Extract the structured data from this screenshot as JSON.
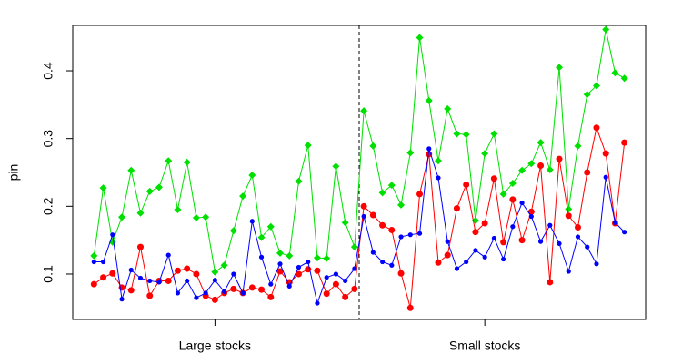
{
  "chart_data": {
    "type": "line",
    "ylabel": "pin",
    "xlim": [
      -1.28,
      60.28
    ],
    "ylim": [
      0.033,
      0.467
    ],
    "yticks": [
      0.1,
      0.2,
      0.3,
      0.4
    ],
    "xticks": [
      {
        "value": 14,
        "label": "Large stocks"
      },
      {
        "value": 43,
        "label": "Small stocks"
      }
    ],
    "divider": 29.5,
    "x": [
      1,
      2,
      3,
      4,
      5,
      6,
      7,
      8,
      9,
      10,
      11,
      12,
      13,
      14,
      15,
      16,
      17,
      18,
      19,
      20,
      21,
      22,
      23,
      24,
      25,
      26,
      27,
      28,
      29,
      30,
      31,
      32,
      33,
      34,
      35,
      36,
      37,
      38,
      39,
      40,
      41,
      42,
      43,
      44,
      45,
      46,
      47,
      48,
      49,
      50,
      51,
      52,
      53,
      54,
      55,
      56,
      57,
      58
    ],
    "series": [
      {
        "color": "#00e000",
        "marker": "diamond",
        "values": [
          0.127,
          0.227,
          0.147,
          0.184,
          0.253,
          0.19,
          0.222,
          0.228,
          0.267,
          0.195,
          0.265,
          0.183,
          0.184,
          0.103,
          0.113,
          0.164,
          0.215,
          0.246,
          0.154,
          0.17,
          0.131,
          0.127,
          0.237,
          0.29,
          0.124,
          0.123,
          0.259,
          0.176,
          0.14,
          0.341,
          0.289,
          0.22,
          0.231,
          0.202,
          0.279,
          0.449,
          0.356,
          0.267,
          0.344,
          0.307,
          0.306,
          0.179,
          0.278,
          0.307,
          0.218,
          0.234,
          0.253,
          0.263,
          0.294,
          0.254,
          0.405,
          0.196,
          0.289,
          0.365,
          0.378,
          0.461,
          0.397,
          0.389
        ]
      },
      {
        "color": "#ff0000",
        "marker": "circle",
        "values": [
          0.085,
          0.095,
          0.101,
          0.08,
          0.076,
          0.14,
          0.068,
          0.09,
          0.09,
          0.105,
          0.108,
          0.1,
          0.068,
          0.062,
          0.072,
          0.078,
          0.072,
          0.08,
          0.077,
          0.066,
          0.104,
          0.088,
          0.1,
          0.107,
          0.105,
          0.071,
          0.085,
          0.066,
          0.078,
          0.2,
          0.187,
          0.172,
          0.165,
          0.101,
          0.05,
          0.218,
          0.277,
          0.117,
          0.128,
          0.197,
          0.232,
          0.162,
          0.175,
          0.241,
          0.147,
          0.21,
          0.15,
          0.192,
          0.26,
          0.088,
          0.27,
          0.186,
          0.169,
          0.25,
          0.316,
          0.278,
          0.175,
          0.294
        ]
      },
      {
        "color": "#0000ff",
        "marker": "dot",
        "values": [
          0.118,
          0.118,
          0.158,
          0.063,
          0.106,
          0.094,
          0.09,
          0.088,
          0.128,
          0.072,
          0.09,
          0.065,
          0.072,
          0.091,
          0.074,
          0.1,
          0.072,
          0.178,
          0.125,
          0.085,
          0.115,
          0.082,
          0.11,
          0.118,
          0.057,
          0.095,
          0.1,
          0.09,
          0.108,
          0.185,
          0.132,
          0.118,
          0.113,
          0.155,
          0.158,
          0.16,
          0.285,
          0.242,
          0.148,
          0.108,
          0.118,
          0.135,
          0.125,
          0.153,
          0.122,
          0.17,
          0.205,
          0.185,
          0.148,
          0.172,
          0.145,
          0.104,
          0.155,
          0.14,
          0.115,
          0.243,
          0.176,
          0.162
        ]
      }
    ]
  }
}
